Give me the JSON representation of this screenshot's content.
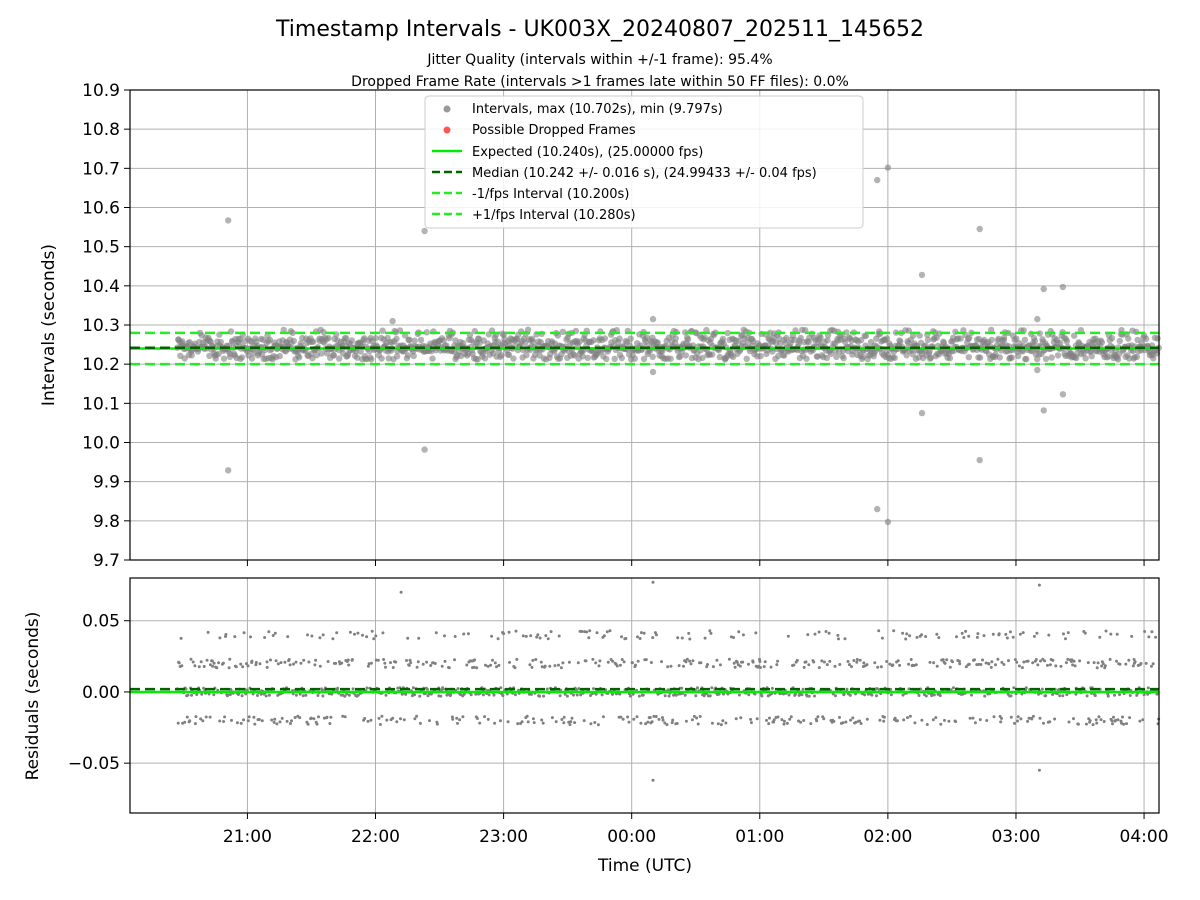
{
  "figure": {
    "title": "Timestamp Intervals - UK003X_20240807_202511_145652",
    "subtitle_line1": "Jitter Quality (intervals within +/-1 frame): 95.4%",
    "subtitle_line2": "Dropped Frame Rate (intervals >1 frames late within 50 FF files): 0.0%",
    "xlabel": "Time (UTC)"
  },
  "colors": {
    "points": "#808080",
    "dropped": "#ff5555",
    "expected": "#00ee00",
    "median": "#006400",
    "interval": "#22ee22",
    "grid": "#b0b0b0"
  },
  "chart_data": [
    {
      "type": "scatter",
      "panel": "intervals",
      "ylabel": "Intervals (seconds)",
      "ylim": [
        9.7,
        10.9
      ],
      "yticks": [
        9.7,
        9.8,
        9.9,
        10.0,
        10.1,
        10.2,
        10.3,
        10.4,
        10.5,
        10.6,
        10.7,
        10.8,
        10.9
      ],
      "ytick_labels": [
        "9.7",
        "9.8",
        "9.9",
        "10.0",
        "10.1",
        "10.2",
        "10.3",
        "10.4",
        "10.5",
        "10.6",
        "10.7",
        "10.8",
        "10.9"
      ],
      "xlim": [
        "20:05",
        "04:07"
      ],
      "xticks": [
        "21:00",
        "22:00",
        "23:00",
        "00:00",
        "01:00",
        "02:00",
        "03:00",
        "04:00"
      ],
      "grid": true,
      "legend_position": "top-center",
      "legend": [
        {
          "label": "Intervals, max (10.702s), min (9.797s)",
          "kind": "dot",
          "color": "#999999"
        },
        {
          "label": "Possible Dropped Frames",
          "kind": "dot",
          "color": "#ff5555"
        },
        {
          "label": "Expected (10.240s), (25.00000 fps)",
          "kind": "solid",
          "color": "#00ee00"
        },
        {
          "label": "Median (10.242 +/- 0.016 s), (24.99433 +/- 0.04 fps)",
          "kind": "dashed",
          "color": "#006400"
        },
        {
          "label": "-1/fps Interval (10.200s)",
          "kind": "dashed",
          "color": "#22ee22"
        },
        {
          "label": "+1/fps Interval (10.280s)",
          "kind": "dashed",
          "color": "#22ee22"
        }
      ],
      "hlines": {
        "expected": 10.24,
        "median": 10.242,
        "minus_interval": 10.2,
        "plus_interval": 10.28
      },
      "band": {
        "start": "20:27",
        "end": "04:07",
        "levels": [
          10.22,
          10.24,
          10.26,
          10.28
        ],
        "spread": 0.008
      },
      "outliers": [
        {
          "x": "20:51",
          "y": 10.567
        },
        {
          "x": "20:51",
          "y": 9.929
        },
        {
          "x": "22:08",
          "y": 10.31
        },
        {
          "x": "22:23",
          "y": 10.54
        },
        {
          "x": "22:23",
          "y": 9.982
        },
        {
          "x": "00:10",
          "y": 10.315
        },
        {
          "x": "00:10",
          "y": 10.18
        },
        {
          "x": "01:55",
          "y": 10.67
        },
        {
          "x": "01:55",
          "y": 9.83
        },
        {
          "x": "02:00",
          "y": 10.702
        },
        {
          "x": "02:00",
          "y": 9.797
        },
        {
          "x": "02:16",
          "y": 10.428
        },
        {
          "x": "02:16",
          "y": 10.075
        },
        {
          "x": "02:43",
          "y": 10.545
        },
        {
          "x": "02:43",
          "y": 9.955
        },
        {
          "x": "03:10",
          "y": 10.315
        },
        {
          "x": "03:10",
          "y": 10.185
        },
        {
          "x": "03:13",
          "y": 10.392
        },
        {
          "x": "03:13",
          "y": 10.082
        },
        {
          "x": "03:22",
          "y": 10.397
        },
        {
          "x": "03:22",
          "y": 10.123
        }
      ]
    },
    {
      "type": "scatter",
      "panel": "residuals",
      "ylabel": "Residuals (seconds)",
      "ylim": [
        -0.085,
        0.08
      ],
      "yticks": [
        -0.05,
        0.0,
        0.05
      ],
      "ytick_labels": [
        "−0.05",
        "0.00",
        "0.05"
      ],
      "xlim": [
        "20:05",
        "04:07"
      ],
      "xticks": [
        "21:00",
        "22:00",
        "23:00",
        "00:00",
        "01:00",
        "02:00",
        "03:00",
        "04:00"
      ],
      "xtick_labels": [
        "21:00",
        "22:00",
        "23:00",
        "00:00",
        "01:00",
        "02:00",
        "03:00",
        "04:00"
      ],
      "grid": true,
      "hlines": {
        "expected": 0.0,
        "median": 0.002
      },
      "band": {
        "start": "20:27",
        "end": "04:07",
        "levels": [
          -0.02,
          0.0,
          0.02,
          0.04
        ],
        "spread": 0.003
      },
      "outliers": [
        {
          "x": "22:12",
          "y": 0.07
        },
        {
          "x": "00:10",
          "y": 0.077
        },
        {
          "x": "00:10",
          "y": -0.062
        },
        {
          "x": "03:11",
          "y": 0.075
        },
        {
          "x": "03:11",
          "y": -0.055
        }
      ]
    }
  ]
}
